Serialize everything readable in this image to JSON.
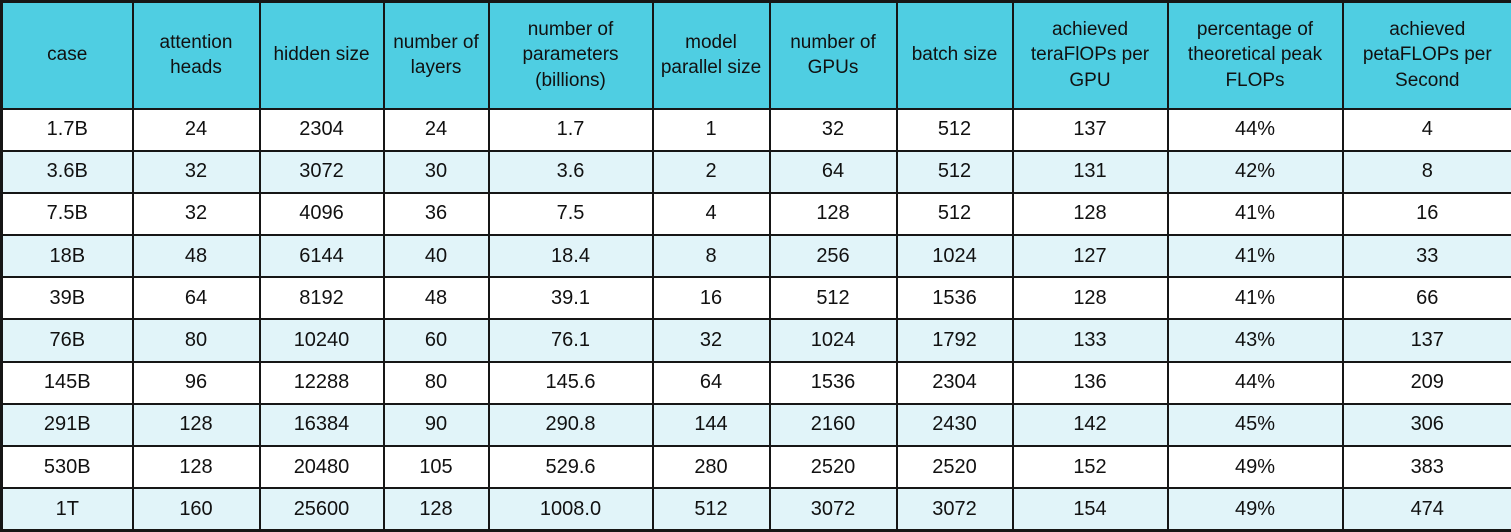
{
  "colors": {
    "header_bg": "#4FCEE2",
    "row_alt_bg": "#E1F4F9",
    "row_bg": "#FFFFFF",
    "border": "#161616",
    "text": "#111111"
  },
  "table": {
    "headers": [
      "case",
      "attention heads",
      "hidden size",
      "number of layers",
      "number of parameters (billions)",
      "model parallel size",
      "number of GPUs",
      "batch size",
      "achieved teraFlOPs per GPU",
      "percentage of theoretical peak FLOPs",
      "achieved petaFLOPs per Second"
    ],
    "rows": [
      [
        "1.7B",
        "24",
        "2304",
        "24",
        "1.7",
        "1",
        "32",
        "512",
        "137",
        "44%",
        "4"
      ],
      [
        "3.6B",
        "32",
        "3072",
        "30",
        "3.6",
        "2",
        "64",
        "512",
        "131",
        "42%",
        "8"
      ],
      [
        "7.5B",
        "32",
        "4096",
        "36",
        "7.5",
        "4",
        "128",
        "512",
        "128",
        "41%",
        "16"
      ],
      [
        "18B",
        "48",
        "6144",
        "40",
        "18.4",
        "8",
        "256",
        "1024",
        "127",
        "41%",
        "33"
      ],
      [
        "39B",
        "64",
        "8192",
        "48",
        "39.1",
        "16",
        "512",
        "1536",
        "128",
        "41%",
        "66"
      ],
      [
        "76B",
        "80",
        "10240",
        "60",
        "76.1",
        "32",
        "1024",
        "1792",
        "133",
        "43%",
        "137"
      ],
      [
        "145B",
        "96",
        "12288",
        "80",
        "145.6",
        "64",
        "1536",
        "2304",
        "136",
        "44%",
        "209"
      ],
      [
        "291B",
        "128",
        "16384",
        "90",
        "290.8",
        "144",
        "2160",
        "2430",
        "142",
        "45%",
        "306"
      ],
      [
        "530B",
        "128",
        "20480",
        "105",
        "529.6",
        "280",
        "2520",
        "2520",
        "152",
        "49%",
        "383"
      ],
      [
        "1T",
        "160",
        "25600",
        "128",
        "1008.0",
        "512",
        "3072",
        "3072",
        "154",
        "49%",
        "474"
      ]
    ]
  }
}
